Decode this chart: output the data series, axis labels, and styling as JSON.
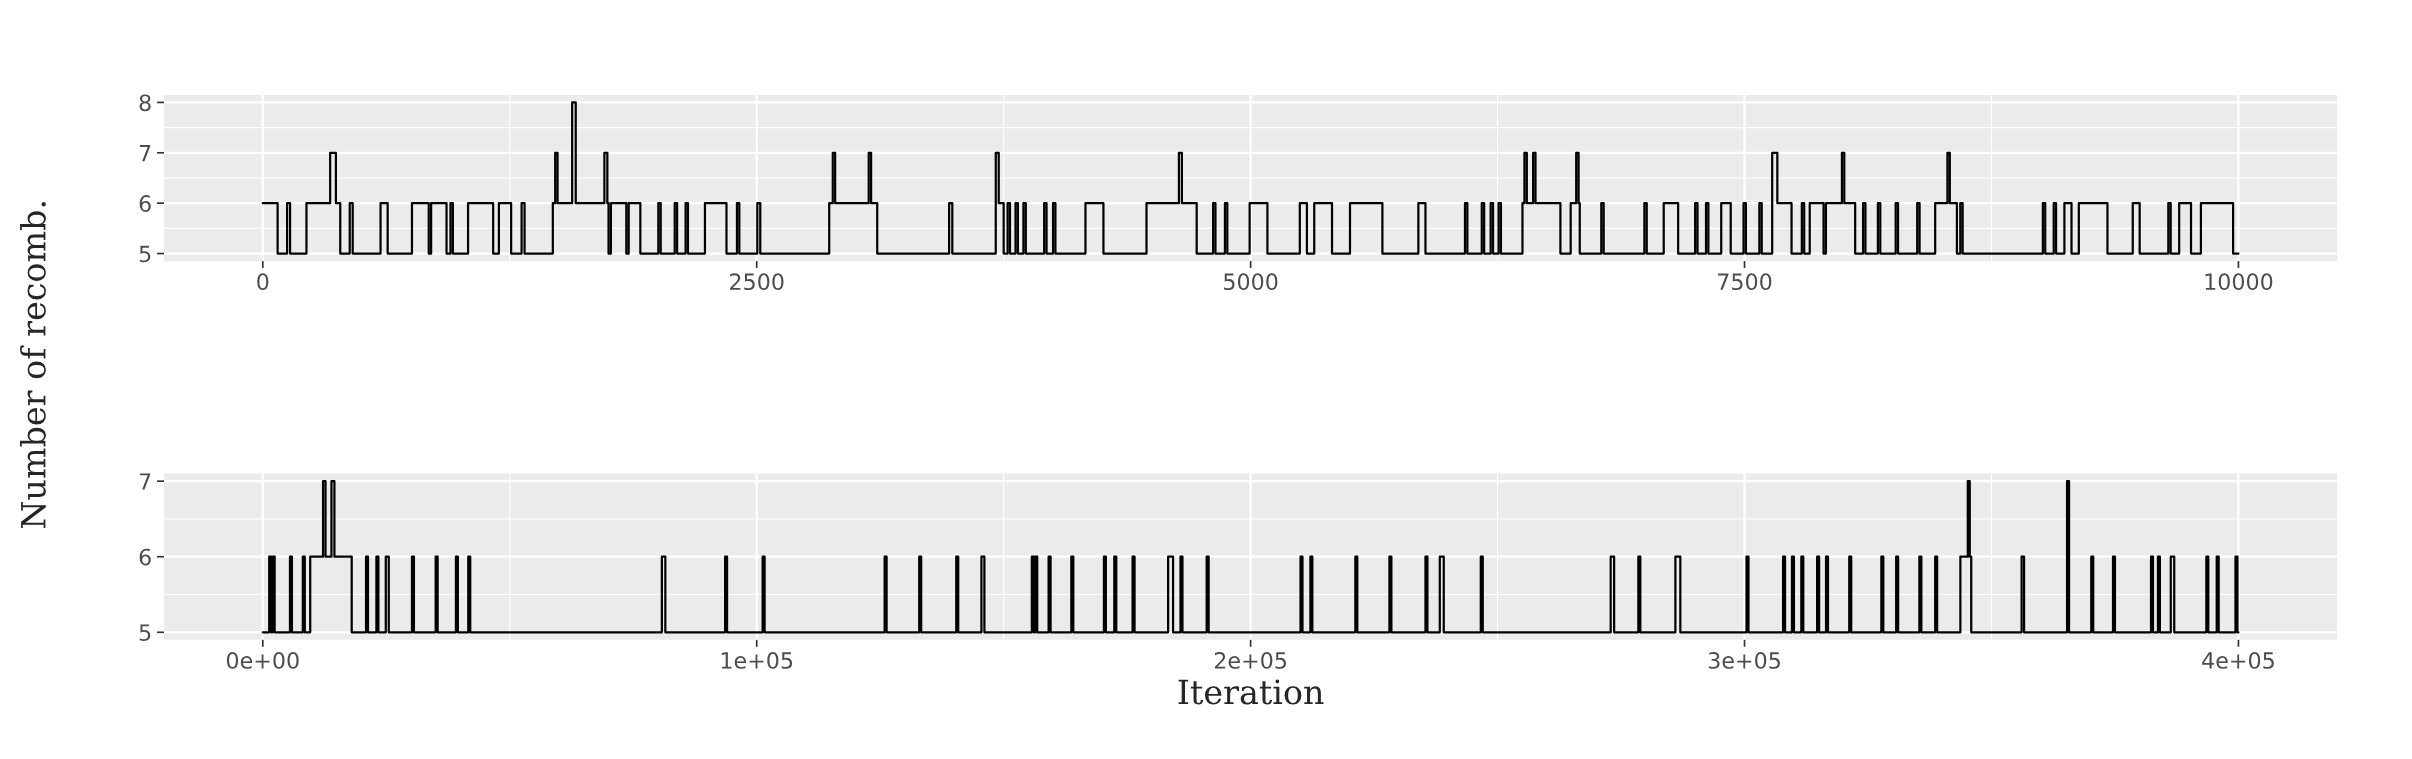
{
  "chart_data": [
    {
      "type": "step",
      "ylabel": "Number of recomb.",
      "xlim": [
        -500,
        10500
      ],
      "ylim": [
        4.85,
        8.15
      ],
      "xticks": [
        0,
        2500,
        5000,
        7500,
        10000
      ],
      "yticks": [
        5,
        6,
        7,
        8
      ],
      "grid": true,
      "series": [
        {
          "color": "#000000",
          "x": [
            0,
            75,
            123,
            138,
            221,
            341,
            370,
            392,
            440,
            455,
            596,
            632,
            755,
            840,
            852,
            930,
            950,
            962,
            1039,
            1166,
            1195,
            1257,
            1310,
            1325,
            1468,
            1480,
            1492,
            1566,
            1584,
            1729,
            1744,
            1750,
            1762,
            1840,
            1852,
            1911,
            2002,
            2014,
            2085,
            2097,
            2140,
            2152,
            2238,
            2347,
            2400,
            2412,
            2503,
            2518,
            2867,
            2885,
            2897,
            3067,
            3079,
            3110,
            3474,
            3490,
            3710,
            3725,
            3750,
            3770,
            3782,
            3810,
            3822,
            3850,
            3862,
            3955,
            3967,
            4000,
            4012,
            4164,
            4255,
            4473,
            4637,
            4652,
            4727,
            4810,
            4822,
            4870,
            4882,
            4995,
            5085,
            5249,
            5285,
            5322,
            5412,
            5503,
            5667,
            5849,
            5885,
            6085,
            6097,
            6170,
            6182,
            6215,
            6227,
            6255,
            6267,
            6376,
            6386,
            6398,
            6430,
            6442,
            6568,
            6620,
            6648,
            6660,
            6666,
            6775,
            6787,
            6993,
            7005,
            7091,
            7164,
            7250,
            7262,
            7305,
            7317,
            7382,
            7430,
            7495,
            7507,
            7575,
            7587,
            7640,
            7666,
            7738,
            7790,
            7802,
            7830,
            7900,
            7912,
            7993,
            8005,
            8060,
            8100,
            8112,
            8175,
            8187,
            8265,
            8277,
            8374,
            8386,
            8465,
            8527,
            8539,
            8575,
            8592,
            8604,
            9010,
            9022,
            9065,
            9077,
            9119,
            9155,
            9192,
            9337,
            9465,
            9500,
            9645,
            9657,
            9700,
            9760,
            9810,
            9973,
            10000
          ],
          "values": [
            6,
            5,
            6,
            5,
            6,
            7,
            6,
            5,
            6,
            5,
            6,
            5,
            6,
            5,
            6,
            5,
            6,
            5,
            6,
            5,
            6,
            5,
            6,
            5,
            6,
            7,
            6,
            8,
            6,
            7,
            6,
            5,
            6,
            5,
            6,
            5,
            6,
            5,
            6,
            5,
            6,
            5,
            6,
            5,
            6,
            5,
            6,
            5,
            6,
            7,
            6,
            7,
            6,
            5,
            6,
            5,
            7,
            6,
            5,
            6,
            5,
            6,
            5,
            6,
            5,
            6,
            5,
            6,
            5,
            6,
            5,
            6,
            7,
            6,
            5,
            6,
            5,
            6,
            5,
            6,
            5,
            6,
            5,
            6,
            5,
            6,
            5,
            6,
            5,
            6,
            5,
            6,
            5,
            6,
            5,
            6,
            5,
            6,
            7,
            6,
            7,
            6,
            5,
            6,
            7,
            6,
            5,
            6,
            5,
            6,
            5,
            6,
            5,
            6,
            5,
            6,
            5,
            6,
            5,
            6,
            5,
            6,
            5,
            7,
            6,
            5,
            6,
            5,
            6,
            5,
            6,
            7,
            6,
            5,
            6,
            5,
            6,
            5,
            6,
            5,
            6,
            5,
            6,
            7,
            6,
            5,
            6,
            5,
            6,
            5,
            6,
            5,
            6,
            5,
            6,
            5,
            6,
            5,
            6,
            5,
            6,
            5,
            6,
            5,
            5
          ]
        }
      ]
    },
    {
      "type": "step",
      "xlabel": "Iteration",
      "xlim": [
        -20000,
        420000
      ],
      "ylim": [
        4.9,
        7.1
      ],
      "xticks": [
        {
          "value": 0,
          "label": "0e+00"
        },
        {
          "value": 100000,
          "label": "1e+05"
        },
        {
          "value": 200000,
          "label": "2e+05"
        },
        {
          "value": 300000,
          "label": "3e+05"
        },
        {
          "value": 400000,
          "label": "4e+05"
        }
      ],
      "yticks": [
        5,
        6,
        7
      ],
      "grid": true,
      "series": [
        {
          "color": "#000000",
          "x": [
            0,
            1300,
            1700,
            2000,
            2400,
            5500,
            5900,
            8100,
            8500,
            9600,
            12200,
            12700,
            13900,
            14500,
            18000,
            20900,
            21300,
            23000,
            23400,
            24900,
            25500,
            30200,
            30600,
            35000,
            35400,
            39100,
            39500,
            41600,
            42000,
            80800,
            81500,
            93600,
            94000,
            101200,
            101600,
            125900,
            126300,
            132900,
            133300,
            140400,
            140800,
            145500,
            146100,
            155700,
            156100,
            156400,
            156800,
            159100,
            159500,
            163700,
            164100,
            170300,
            170700,
            172400,
            172800,
            176100,
            176500,
            183300,
            184300,
            185800,
            186200,
            191100,
            191500,
            210100,
            210500,
            212100,
            212500,
            221200,
            221600,
            228100,
            228500,
            235400,
            235800,
            238300,
            239100,
            246600,
            247000,
            272900,
            273600,
            278500,
            278900,
            286000,
            287000,
            300400,
            300800,
            307800,
            308200,
            309600,
            310000,
            311500,
            311900,
            314700,
            315100,
            316500,
            316900,
            321200,
            321600,
            327700,
            328100,
            330700,
            331100,
            335400,
            335800,
            338600,
            339000,
            343700,
            345200,
            345600,
            345900,
            356100,
            356600,
            365300,
            365700,
            370200,
            370600,
            374600,
            375000,
            382300,
            382700,
            383700,
            384100,
            386300,
            387000,
            393500,
            393900,
            395600,
            396000,
            399400,
            399800,
            400000
          ],
          "values": [
            5,
            6,
            5,
            6,
            5,
            6,
            5,
            6,
            5,
            6,
            7,
            6,
            7,
            6,
            5,
            6,
            5,
            6,
            5,
            6,
            5,
            6,
            5,
            6,
            5,
            6,
            5,
            6,
            5,
            6,
            5,
            6,
            5,
            6,
            5,
            6,
            5,
            6,
            5,
            6,
            5,
            6,
            5,
            6,
            5,
            6,
            5,
            6,
            5,
            6,
            5,
            6,
            5,
            6,
            5,
            6,
            5,
            6,
            5,
            6,
            5,
            6,
            5,
            6,
            5,
            6,
            5,
            6,
            5,
            6,
            5,
            6,
            5,
            6,
            5,
            6,
            5,
            6,
            5,
            6,
            5,
            6,
            5,
            6,
            5,
            6,
            5,
            6,
            5,
            6,
            5,
            6,
            5,
            6,
            5,
            6,
            5,
            6,
            5,
            6,
            5,
            6,
            5,
            6,
            5,
            6,
            7,
            6,
            5,
            6,
            5,
            7,
            5,
            6,
            5,
            6,
            5,
            6,
            5,
            6,
            5,
            6,
            5,
            6,
            5,
            6,
            5,
            6,
            5,
            5
          ]
        }
      ]
    }
  ]
}
